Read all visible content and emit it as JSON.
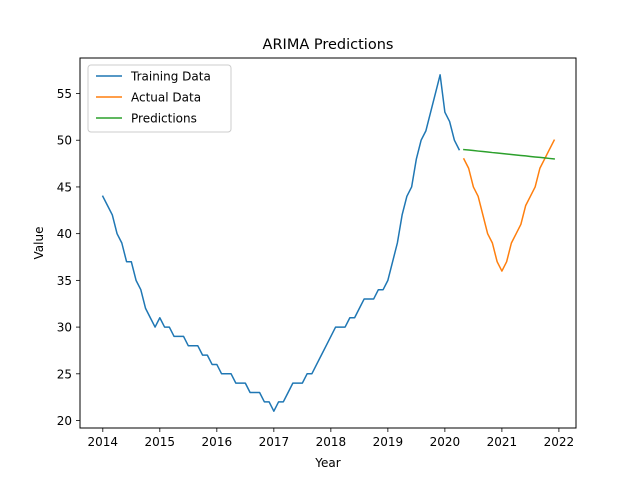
{
  "chart_data": {
    "type": "line",
    "title": "ARIMA Predictions",
    "xlabel": "Year",
    "ylabel": "Value",
    "xlim": [
      2013.6,
      2022.3
    ],
    "ylim": [
      19.2,
      58.8
    ],
    "xticks": [
      2014,
      2015,
      2016,
      2017,
      2018,
      2019,
      2020,
      2021,
      2022
    ],
    "yticks": [
      20,
      25,
      30,
      35,
      40,
      45,
      50,
      55
    ],
    "grid": false,
    "legend_position": "upper-left",
    "series": [
      {
        "name": "Training Data",
        "color": "#1f77b4",
        "x_start": "2014-01",
        "frequency": "monthly",
        "values": [
          44,
          43,
          42,
          40,
          39,
          37,
          37,
          35,
          34,
          32,
          31,
          30,
          31,
          30,
          30,
          29,
          29,
          29,
          28,
          28,
          28,
          27,
          27,
          26,
          26,
          25,
          25,
          25,
          24,
          24,
          24,
          23,
          23,
          23,
          22,
          22,
          21,
          22,
          22,
          23,
          24,
          24,
          24,
          25,
          25,
          26,
          27,
          28,
          29,
          30,
          30,
          30,
          31,
          31,
          32,
          33,
          33,
          33,
          34,
          34,
          35,
          37,
          39,
          42,
          44,
          45,
          48,
          50,
          51,
          53,
          55,
          57,
          53,
          52,
          50,
          49
        ]
      },
      {
        "name": "Actual Data",
        "color": "#ff7f0e",
        "x_start": "2020-05",
        "frequency": "monthly",
        "values": [
          48,
          47,
          45,
          44,
          42,
          40,
          39,
          37,
          36,
          37,
          39,
          40,
          41,
          43,
          44,
          45,
          47,
          48,
          49,
          50
        ]
      },
      {
        "name": "Predictions",
        "color": "#2ca02c",
        "x_start": "2020-05",
        "frequency": "monthly",
        "values": [
          49,
          48.95,
          48.9,
          48.84,
          48.79,
          48.74,
          48.68,
          48.63,
          48.58,
          48.53,
          48.47,
          48.42,
          48.37,
          48.32,
          48.26,
          48.21,
          48.16,
          48.11,
          48.05,
          48
        ]
      }
    ]
  }
}
